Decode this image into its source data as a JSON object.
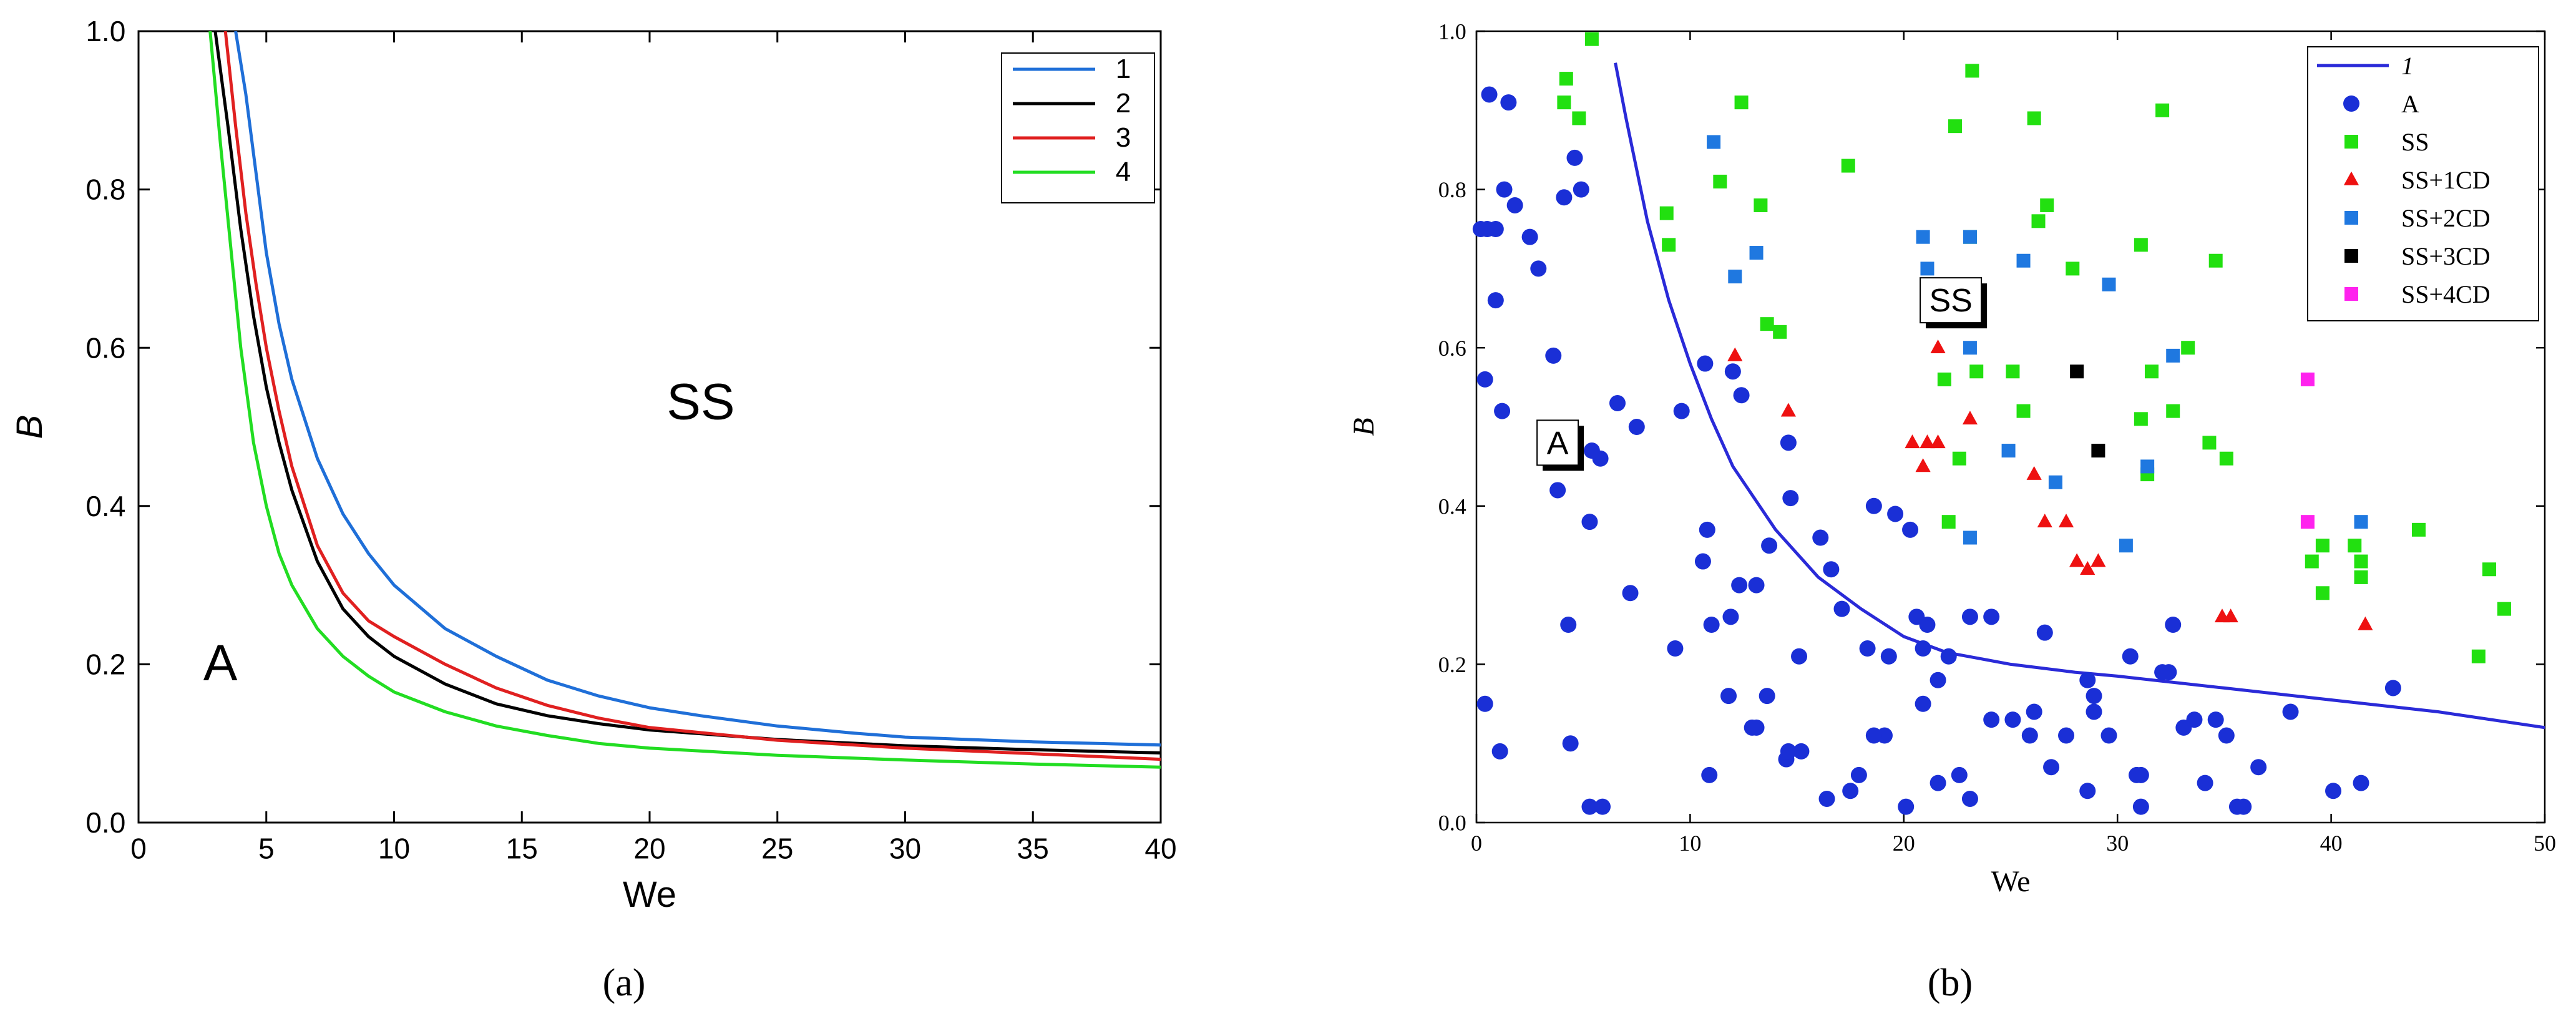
{
  "chart_data": [
    {
      "type": "line",
      "panel_label": "(a)",
      "xlabel": "We",
      "ylabel": "B",
      "xlim": [
        0,
        40
      ],
      "ylim": [
        0,
        1.0
      ],
      "xticks": [
        "0",
        "5",
        "10",
        "15",
        "20",
        "25",
        "30",
        "35",
        "40"
      ],
      "yticks": [
        "0.0",
        "0.2",
        "0.4",
        "0.6",
        "0.8",
        "1.0"
      ],
      "grid": false,
      "legend": "top-right",
      "region_labels": [
        {
          "text": "SS",
          "x": 22,
          "y": 0.51
        },
        {
          "text": "A",
          "x": 3.2,
          "y": 0.18
        }
      ],
      "series": [
        {
          "name": "1",
          "color": "#1f6fd8",
          "x": [
            3.8,
            4.2,
            4.6,
            5,
            5.5,
            6,
            7,
            8,
            9,
            10,
            12,
            14,
            16,
            18,
            20,
            22,
            25,
            28,
            30,
            35,
            40
          ],
          "y": [
            1.0,
            0.92,
            0.82,
            0.72,
            0.63,
            0.56,
            0.46,
            0.39,
            0.34,
            0.3,
            0.245,
            0.21,
            0.18,
            0.16,
            0.145,
            0.135,
            0.122,
            0.113,
            0.108,
            0.102,
            0.098
          ]
        },
        {
          "name": "2",
          "color": "#000000",
          "x": [
            3.0,
            3.5,
            4,
            4.5,
            5,
            5.5,
            6,
            7,
            8,
            9,
            10,
            12,
            14,
            16,
            18,
            20,
            25,
            30,
            35,
            40
          ],
          "y": [
            1.0,
            0.88,
            0.75,
            0.64,
            0.55,
            0.48,
            0.42,
            0.33,
            0.27,
            0.235,
            0.21,
            0.175,
            0.15,
            0.135,
            0.125,
            0.117,
            0.105,
            0.097,
            0.092,
            0.088
          ]
        },
        {
          "name": "3",
          "color": "#e02020",
          "x": [
            3.4,
            3.8,
            4.2,
            4.6,
            5,
            5.5,
            6,
            7,
            8,
            9,
            10,
            12,
            14,
            16,
            18,
            20,
            25,
            30,
            35,
            40
          ],
          "y": [
            1.0,
            0.88,
            0.77,
            0.68,
            0.6,
            0.52,
            0.45,
            0.35,
            0.29,
            0.255,
            0.235,
            0.2,
            0.17,
            0.148,
            0.132,
            0.12,
            0.104,
            0.094,
            0.087,
            0.08
          ]
        },
        {
          "name": "4",
          "color": "#22dd22",
          "x": [
            2.8,
            3.2,
            3.6,
            4,
            4.5,
            5,
            5.5,
            6,
            7,
            8,
            9,
            10,
            12,
            14,
            16,
            18,
            20,
            25,
            30,
            35,
            40
          ],
          "y": [
            1.0,
            0.86,
            0.73,
            0.6,
            0.48,
            0.4,
            0.34,
            0.3,
            0.245,
            0.21,
            0.185,
            0.165,
            0.14,
            0.122,
            0.11,
            0.1,
            0.094,
            0.085,
            0.079,
            0.074,
            0.07
          ]
        }
      ]
    },
    {
      "type": "scatter",
      "panel_label": "(b)",
      "xlabel": "We",
      "ylabel": "B",
      "xlim": [
        0,
        50
      ],
      "ylim": [
        0,
        1.0
      ],
      "xticks": [
        "0",
        "10",
        "20",
        "30",
        "40",
        "50"
      ],
      "yticks": [
        "0.0",
        "0.2",
        "0.4",
        "0.6",
        "0.8",
        "1.0"
      ],
      "grid": false,
      "legend": "top-right",
      "region_labels": [
        {
          "text": "SS",
          "x": 22.2,
          "y": 0.66
        },
        {
          "text": "A",
          "x": 3.8,
          "y": 0.48
        }
      ],
      "line": {
        "name": "1",
        "color": "#2a2ad8",
        "x": [
          6.5,
          7,
          8,
          9,
          10,
          11,
          12,
          14,
          16,
          18,
          20,
          22,
          25,
          28,
          30,
          35,
          40,
          45,
          50
        ],
        "y": [
          0.96,
          0.89,
          0.76,
          0.66,
          0.58,
          0.51,
          0.45,
          0.37,
          0.31,
          0.27,
          0.235,
          0.215,
          0.2,
          0.19,
          0.185,
          0.17,
          0.155,
          0.14,
          0.12
        ]
      },
      "series": [
        {
          "name": "A",
          "marker": "circle",
          "color": "#1a2fd6",
          "x": [
            0.2,
            0.5,
            0.9,
            1.3,
            0.4,
            0.9,
            1.8,
            2.5,
            2.9,
            1.2,
            0.6,
            1.5,
            3.6,
            4.1,
            4.6,
            4.9,
            3.8,
            5.3,
            5.8,
            6.6,
            7.5,
            7.2,
            9.6,
            10.7,
            10.8,
            12.0,
            12.4,
            13.1,
            14.6,
            10.6,
            11.9,
            12.3,
            13.7,
            14.7,
            5.4,
            4.3,
            3.6,
            9.3,
            11.0,
            12.9,
            13.6,
            14.5,
            15.2,
            16.4,
            17.5,
            18.3,
            19.3,
            20.3,
            18.6,
            19.6,
            20.6,
            21.1,
            22.1,
            21.6,
            20.9,
            23.1,
            24.1,
            26.1,
            26.6,
            25.1,
            28.6,
            28.9,
            30.6,
            32.6,
            31.1,
            28.9,
            32.1,
            33.1,
            34.1,
            34.6,
            35.1,
            35.6,
            36.6,
            38.1,
            41.4,
            40.1,
            42.9,
            0.4,
            1.1,
            4.4,
            5.3,
            5.9,
            10.9,
            11.8,
            13.1,
            14.6,
            16.1,
            17.1,
            17.9,
            19.1,
            20.1,
            20.9,
            22.6,
            23.1,
            24.1,
            25.9,
            26.9,
            27.6,
            28.6,
            29.6,
            30.9,
            31.1,
            32.4,
            33.6,
            35.9,
            15.1,
            16.6,
            18.6,
            21.6
          ],
          "y": [
            0.75,
            0.75,
            0.75,
            0.8,
            0.56,
            0.66,
            0.78,
            0.74,
            0.7,
            0.52,
            0.92,
            0.91,
            0.59,
            0.79,
            0.84,
            0.8,
            0.42,
            0.38,
            0.46,
            0.53,
            0.5,
            0.29,
            0.52,
            0.58,
            0.37,
            0.57,
            0.54,
            0.3,
            0.48,
            0.33,
            0.26,
            0.3,
            0.35,
            0.41,
            0.47,
            0.25,
            0.48,
            0.22,
            0.25,
            0.12,
            0.16,
            0.08,
            0.09,
            0.03,
            0.04,
            0.22,
            0.21,
            0.37,
            0.4,
            0.39,
            0.26,
            0.25,
            0.21,
            0.18,
            0.22,
            0.26,
            0.26,
            0.14,
            0.24,
            0.13,
            0.18,
            0.16,
            0.21,
            0.25,
            0.06,
            0.14,
            0.19,
            0.12,
            0.05,
            0.13,
            0.11,
            0.02,
            0.07,
            0.14,
            0.05,
            0.04,
            0.17,
            0.15,
            0.09,
            0.1,
            0.02,
            0.02,
            0.06,
            0.16,
            0.12,
            0.09,
            0.36,
            0.27,
            0.06,
            0.11,
            0.02,
            0.15,
            0.06,
            0.03,
            0.13,
            0.11,
            0.07,
            0.11,
            0.04,
            0.11,
            0.06,
            0.02,
            0.19,
            0.13,
            0.02,
            0.21,
            0.32,
            0.11,
            0.05
          ]
        },
        {
          "name": "SS",
          "marker": "square",
          "color": "#22e010",
          "x": [
            5.4,
            4.2,
            4.8,
            4.1,
            12.4,
            11.4,
            8.9,
            9.0,
            13.3,
            13.6,
            14.2,
            17.4,
            22.4,
            23.2,
            26.1,
            26.7,
            32.1,
            31.1,
            34.6,
            33.3,
            26.3,
            27.9,
            23.1,
            21.9,
            23.4,
            25.1,
            25.6,
            31.6,
            32.6,
            31.1,
            35.1,
            34.3,
            31.4,
            22.6,
            22.1,
            41.1,
            39.1,
            39.6,
            39.6,
            41.4,
            41.4,
            44.1,
            47.4,
            48.1,
            46.9
          ],
          "y": [
            0.99,
            0.94,
            0.89,
            0.91,
            0.91,
            0.81,
            0.77,
            0.73,
            0.78,
            0.63,
            0.62,
            0.83,
            0.88,
            0.95,
            0.89,
            0.78,
            0.9,
            0.73,
            0.71,
            0.6,
            0.76,
            0.7,
            0.74,
            0.56,
            0.57,
            0.57,
            0.52,
            0.57,
            0.52,
            0.51,
            0.46,
            0.48,
            0.44,
            0.46,
            0.38,
            0.35,
            0.33,
            0.35,
            0.29,
            0.33,
            0.31,
            0.37,
            0.32,
            0.27,
            0.21
          ]
        },
        {
          "name": "SS+1CD",
          "marker": "triangle",
          "color": "#ee1111",
          "x": [
            12.1,
            14.6,
            21.6,
            20.4,
            21.1,
            21.6,
            20.9,
            23.1,
            26.1,
            26.6,
            27.6,
            28.1,
            28.6,
            29.1,
            34.9,
            35.3,
            41.6
          ],
          "y": [
            0.59,
            0.52,
            0.6,
            0.48,
            0.48,
            0.48,
            0.45,
            0.51,
            0.44,
            0.38,
            0.38,
            0.33,
            0.32,
            0.33,
            0.26,
            0.26,
            0.25
          ]
        },
        {
          "name": "SS+2CD",
          "marker": "square",
          "color": "#1f78e0",
          "x": [
            11.1,
            12.1,
            13.1,
            20.9,
            21.1,
            23.1,
            25.6,
            29.6,
            23.1,
            32.6,
            24.9,
            27.1,
            31.4,
            23.1,
            30.4,
            41.4
          ],
          "y": [
            0.86,
            0.69,
            0.72,
            0.74,
            0.7,
            0.74,
            0.71,
            0.68,
            0.6,
            0.59,
            0.47,
            0.43,
            0.45,
            0.36,
            0.35,
            0.38
          ]
        },
        {
          "name": "SS+3CD",
          "marker": "square",
          "color": "#000000",
          "x": [
            28.1,
            29.1
          ],
          "y": [
            0.57,
            0.47
          ]
        },
        {
          "name": "SS+4CD",
          "marker": "square",
          "color": "#ff22ee",
          "x": [
            38.9,
            38.9
          ],
          "y": [
            0.56,
            0.38
          ]
        }
      ]
    }
  ]
}
